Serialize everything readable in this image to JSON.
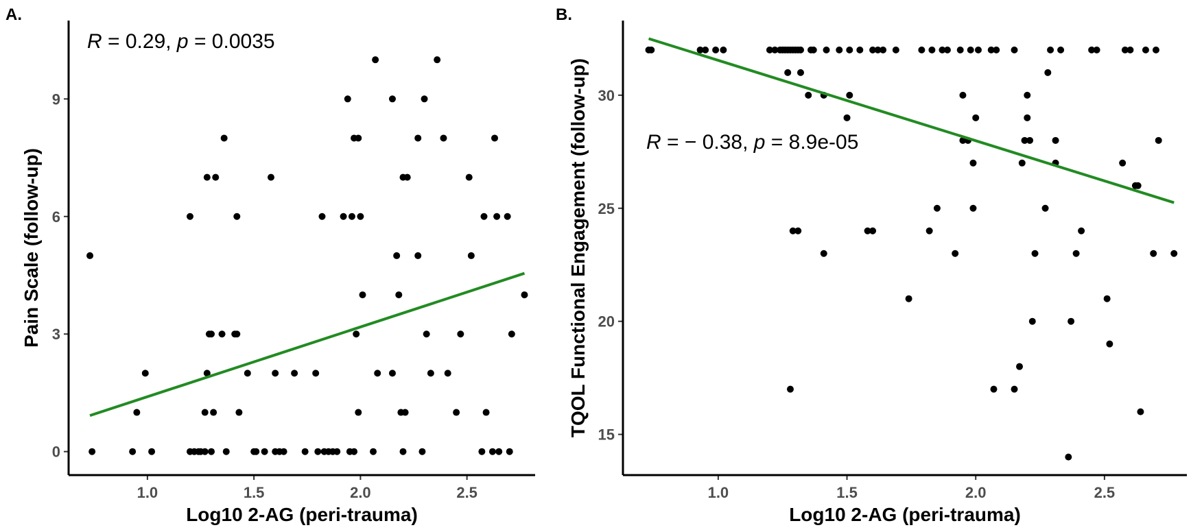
{
  "chart_data": [
    {
      "type": "scatter",
      "panel_label": "A.",
      "xlabel": "Log10 2-AG (peri-trauma)",
      "ylabel": "Pain Scale (follow-up)",
      "xlim": [
        0.63,
        2.82
      ],
      "ylim": [
        -0.6,
        11.0
      ],
      "x_ticks": [
        1.0,
        1.5,
        2.0,
        2.5
      ],
      "x_tick_labels": [
        "1.0",
        "1.5",
        "2.0",
        "2.5"
      ],
      "y_ticks": [
        0,
        3,
        6,
        9
      ],
      "y_tick_labels": [
        "0",
        "3",
        "6",
        "9"
      ],
      "annotation": {
        "r_label": "R",
        "r_text": " = 0.29, ",
        "p_label": "p",
        "p_text": " = 0.0035",
        "x": 0.73,
        "y": 10.7
      },
      "fit_line": {
        "x": [
          0.73,
          2.77
        ],
        "y": [
          0.92,
          4.55
        ],
        "color": "#228b22"
      },
      "grid": false,
      "points": [
        [
          0.73,
          5
        ],
        [
          0.74,
          0
        ],
        [
          0.93,
          0
        ],
        [
          0.95,
          1
        ],
        [
          0.99,
          2
        ],
        [
          1.02,
          0
        ],
        [
          1.2,
          6
        ],
        [
          1.2,
          0
        ],
        [
          1.22,
          0
        ],
        [
          1.24,
          0
        ],
        [
          1.25,
          0
        ],
        [
          1.27,
          1
        ],
        [
          1.27,
          0
        ],
        [
          1.28,
          7
        ],
        [
          1.28,
          2
        ],
        [
          1.29,
          3
        ],
        [
          1.3,
          3
        ],
        [
          1.3,
          0
        ],
        [
          1.31,
          1
        ],
        [
          1.32,
          7
        ],
        [
          1.35,
          3
        ],
        [
          1.36,
          8
        ],
        [
          1.37,
          0
        ],
        [
          1.41,
          3
        ],
        [
          1.42,
          6
        ],
        [
          1.42,
          3
        ],
        [
          1.43,
          1
        ],
        [
          1.47,
          2
        ],
        [
          1.5,
          0
        ],
        [
          1.51,
          0
        ],
        [
          1.55,
          0
        ],
        [
          1.58,
          7
        ],
        [
          1.6,
          2
        ],
        [
          1.6,
          0
        ],
        [
          1.62,
          0
        ],
        [
          1.64,
          0
        ],
        [
          1.69,
          2
        ],
        [
          1.74,
          0
        ],
        [
          1.79,
          2
        ],
        [
          1.8,
          0
        ],
        [
          1.82,
          6
        ],
        [
          1.83,
          0
        ],
        [
          1.85,
          0
        ],
        [
          1.87,
          0
        ],
        [
          1.89,
          0
        ],
        [
          1.92,
          6
        ],
        [
          1.94,
          9
        ],
        [
          1.95,
          0
        ],
        [
          1.96,
          6
        ],
        [
          1.97,
          8
        ],
        [
          1.97,
          0
        ],
        [
          1.98,
          3
        ],
        [
          1.99,
          8
        ],
        [
          1.99,
          1
        ],
        [
          2.0,
          6
        ],
        [
          2.01,
          4
        ],
        [
          2.06,
          0
        ],
        [
          2.07,
          10
        ],
        [
          2.08,
          2
        ],
        [
          2.15,
          9
        ],
        [
          2.15,
          2
        ],
        [
          2.17,
          5
        ],
        [
          2.18,
          4
        ],
        [
          2.19,
          1
        ],
        [
          2.2,
          7
        ],
        [
          2.2,
          0
        ],
        [
          2.21,
          1
        ],
        [
          2.22,
          7
        ],
        [
          2.27,
          5
        ],
        [
          2.27,
          8
        ],
        [
          2.29,
          0
        ],
        [
          2.3,
          9
        ],
        [
          2.31,
          3
        ],
        [
          2.33,
          2
        ],
        [
          2.36,
          10
        ],
        [
          2.39,
          8
        ],
        [
          2.41,
          2
        ],
        [
          2.45,
          1
        ],
        [
          2.47,
          3
        ],
        [
          2.51,
          7
        ],
        [
          2.52,
          5
        ],
        [
          2.57,
          0
        ],
        [
          2.58,
          6
        ],
        [
          2.59,
          1
        ],
        [
          2.62,
          0
        ],
        [
          2.63,
          8
        ],
        [
          2.64,
          6
        ],
        [
          2.65,
          0
        ],
        [
          2.69,
          6
        ],
        [
          2.7,
          0
        ],
        [
          2.71,
          3
        ],
        [
          2.77,
          4
        ]
      ]
    },
    {
      "type": "scatter",
      "panel_label": "B.",
      "xlabel": "Log10 2-AG (peri-trauma)",
      "ylabel": "TQOL Functional Engagement (follow-up)",
      "xlim": [
        0.63,
        2.82
      ],
      "ylim": [
        13.2,
        33.3
      ],
      "x_ticks": [
        1.0,
        1.5,
        2.0,
        2.5
      ],
      "x_tick_labels": [
        "1.0",
        "1.5",
        "2.0",
        "2.5"
      ],
      "y_ticks": [
        15,
        20,
        25,
        30
      ],
      "y_tick_labels": [
        "15",
        "20",
        "25",
        "30"
      ],
      "annotation": {
        "r_label": "R",
        "r_text": " = − 0.38, ",
        "p_label": "p",
        "p_text": " = 8.9e-05",
        "x": 0.72,
        "y": 28.0
      },
      "fit_line": {
        "x": [
          0.73,
          2.77
        ],
        "y": [
          32.5,
          25.25
        ],
        "color": "#228b22"
      },
      "grid": false,
      "points": [
        [
          0.73,
          32
        ],
        [
          0.74,
          32
        ],
        [
          0.93,
          32
        ],
        [
          0.95,
          32
        ],
        [
          0.99,
          32
        ],
        [
          1.02,
          32
        ],
        [
          1.2,
          32
        ],
        [
          1.22,
          32
        ],
        [
          1.24,
          32
        ],
        [
          1.25,
          32
        ],
        [
          1.26,
          32
        ],
        [
          1.27,
          31
        ],
        [
          1.27,
          32
        ],
        [
          1.28,
          32
        ],
        [
          1.29,
          32
        ],
        [
          1.3,
          32
        ],
        [
          1.31,
          32
        ],
        [
          1.32,
          32
        ],
        [
          1.28,
          17
        ],
        [
          1.29,
          24
        ],
        [
          1.31,
          24
        ],
        [
          1.32,
          31
        ],
        [
          1.35,
          30
        ],
        [
          1.36,
          32
        ],
        [
          1.37,
          32
        ],
        [
          1.41,
          23
        ],
        [
          1.41,
          30
        ],
        [
          1.42,
          32
        ],
        [
          1.47,
          32
        ],
        [
          1.5,
          29
        ],
        [
          1.51,
          30
        ],
        [
          1.51,
          32
        ],
        [
          1.55,
          32
        ],
        [
          1.58,
          24
        ],
        [
          1.6,
          24
        ],
        [
          1.6,
          32
        ],
        [
          1.62,
          32
        ],
        [
          1.64,
          32
        ],
        [
          1.69,
          32
        ],
        [
          1.74,
          21
        ],
        [
          1.79,
          32
        ],
        [
          1.82,
          24
        ],
        [
          1.83,
          32
        ],
        [
          1.85,
          25
        ],
        [
          1.87,
          32
        ],
        [
          1.89,
          32
        ],
        [
          1.92,
          23
        ],
        [
          1.94,
          32
        ],
        [
          1.95,
          28
        ],
        [
          1.95,
          30
        ],
        [
          1.97,
          28
        ],
        [
          1.98,
          32
        ],
        [
          1.99,
          25
        ],
        [
          1.99,
          27
        ],
        [
          2.0,
          29
        ],
        [
          2.01,
          32
        ],
        [
          2.06,
          32
        ],
        [
          2.07,
          17
        ],
        [
          2.08,
          32
        ],
        [
          2.15,
          17
        ],
        [
          2.15,
          32
        ],
        [
          2.17,
          18
        ],
        [
          2.18,
          27
        ],
        [
          2.19,
          28
        ],
        [
          2.2,
          30
        ],
        [
          2.2,
          29
        ],
        [
          2.21,
          28
        ],
        [
          2.22,
          20
        ],
        [
          2.23,
          23
        ],
        [
          2.27,
          25
        ],
        [
          2.28,
          31
        ],
        [
          2.29,
          32
        ],
        [
          2.31,
          27
        ],
        [
          2.31,
          28
        ],
        [
          2.33,
          32
        ],
        [
          2.36,
          14
        ],
        [
          2.37,
          20
        ],
        [
          2.39,
          23
        ],
        [
          2.41,
          24
        ],
        [
          2.45,
          32
        ],
        [
          2.47,
          32
        ],
        [
          2.51,
          21
        ],
        [
          2.52,
          19
        ],
        [
          2.57,
          27
        ],
        [
          2.58,
          32
        ],
        [
          2.6,
          32
        ],
        [
          2.62,
          26
        ],
        [
          2.63,
          26
        ],
        [
          2.64,
          16
        ],
        [
          2.66,
          32
        ],
        [
          2.69,
          23
        ],
        [
          2.7,
          32
        ],
        [
          2.71,
          28
        ],
        [
          2.77,
          23
        ]
      ]
    }
  ]
}
